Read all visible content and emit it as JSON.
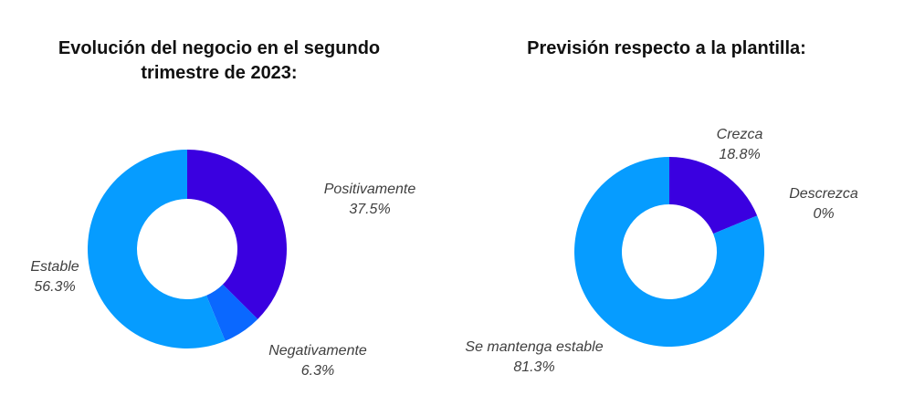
{
  "chart_data": [
    {
      "type": "pie",
      "title": "Evolución del negocio en el segundo trimestre de 2023:",
      "title_lines": [
        "Evolución del negocio en el segundo",
        "trimestre de 2023:"
      ],
      "slices": [
        {
          "label": "Positivamente",
          "value": 37.5,
          "value_label": "37.5%",
          "color": "#3a00e0"
        },
        {
          "label": "Negativamente",
          "value": 6.3,
          "value_label": "6.3%",
          "color": "#0a68ff"
        },
        {
          "label": "Estable",
          "value": 56.3,
          "value_label": "56.3%",
          "color": "#069cff"
        }
      ]
    },
    {
      "type": "pie",
      "title": "Previsión respecto a la plantilla:",
      "title_lines": [
        "Previsión respecto a la plantilla:"
      ],
      "slices": [
        {
          "label": "Crezca",
          "value": 18.8,
          "value_label": "18.8%",
          "color": "#3a00e0"
        },
        {
          "label": "Descrezca",
          "value": 0,
          "value_label": "0%",
          "color": "#0a68ff"
        },
        {
          "label": "Se mantenga estable",
          "value": 81.3,
          "value_label": "81.3%",
          "color": "#069cff"
        }
      ]
    }
  ]
}
